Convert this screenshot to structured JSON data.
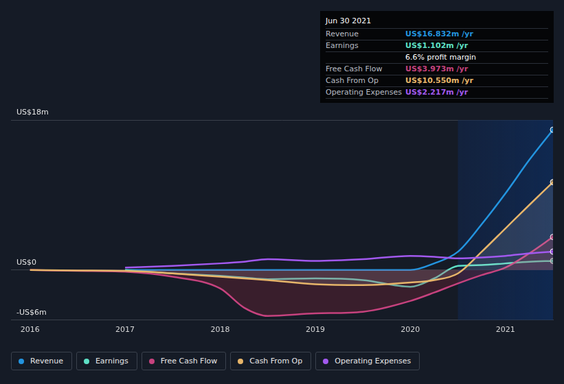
{
  "chart_data": {
    "type": "line",
    "x": [
      2016,
      2016.5,
      2017,
      2017.5,
      2018,
      2018.25,
      2018.5,
      2019,
      2019.5,
      2020,
      2020.25,
      2020.5,
      2020.75,
      2021,
      2021.25,
      2021.5
    ],
    "xlim": [
      2015.8,
      2021.5
    ],
    "xticks": [
      2016,
      2017,
      2018,
      2019,
      2020,
      2021
    ],
    "ylim": [
      -6,
      18
    ],
    "yticks": [
      {
        "value": -6,
        "label": "-US$6m"
      },
      {
        "value": 0,
        "label": "US$0"
      },
      {
        "value": 18,
        "label": "US$18m"
      }
    ],
    "grid": true,
    "highlight": [
      2020.5,
      2021.5
    ],
    "series": [
      {
        "name": "Revenue",
        "color": "#2394df",
        "values": [
          null,
          null,
          0,
          0,
          0,
          0,
          0,
          0,
          0,
          0,
          0.8,
          2.2,
          5.5,
          9.2,
          13.2,
          16.832
        ]
      },
      {
        "name": "Earnings",
        "color": "#5ee0c6",
        "values": [
          null,
          null,
          0,
          -0.4,
          -0.7,
          -0.9,
          -1.1,
          -1.0,
          -1.2,
          -2.0,
          -1.0,
          0.5,
          0.6,
          0.8,
          1.0,
          1.102
        ]
      },
      {
        "name": "Free Cash Flow",
        "color": "#c6427e",
        "values": [
          0,
          -0.1,
          -0.2,
          -0.8,
          -2.2,
          -4.5,
          -5.5,
          -5.2,
          -5.0,
          -3.7,
          -2.7,
          -1.6,
          -0.6,
          0.3,
          2.0,
          3.973
        ]
      },
      {
        "name": "Cash From Op",
        "color": "#e7b56a",
        "values": [
          0,
          -0.05,
          -0.1,
          -0.4,
          -0.8,
          -1.0,
          -1.2,
          -1.7,
          -1.8,
          -1.5,
          -1.2,
          -0.4,
          2.2,
          5.0,
          7.8,
          10.55
        ]
      },
      {
        "name": "Operating Expenses",
        "color": "#a259ef",
        "values": [
          null,
          null,
          0.3,
          0.5,
          0.8,
          1.0,
          1.3,
          1.1,
          1.3,
          1.7,
          1.6,
          1.4,
          1.5,
          1.7,
          2.0,
          2.217
        ]
      }
    ],
    "info_box": {
      "title": "Jun 30 2021",
      "rows": [
        {
          "label": "Revenue",
          "value": "US$16.832m /yr"
        },
        {
          "label": "Earnings",
          "value": "US$1.102m /yr"
        },
        {
          "value": "6.6% profit margin"
        },
        {
          "label": "Free Cash Flow",
          "value": "US$3.973m /yr"
        },
        {
          "label": "Cash From Op",
          "value": "US$10.550m /yr"
        },
        {
          "label": "Operating Expenses",
          "value": "US$2.217m /yr"
        }
      ]
    }
  }
}
